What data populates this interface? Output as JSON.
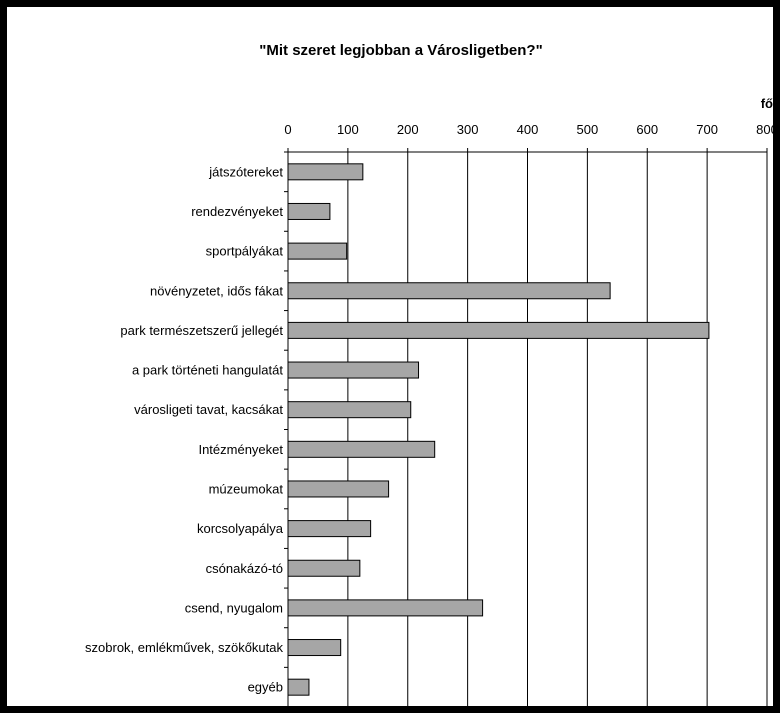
{
  "chart_data": {
    "type": "bar",
    "orientation": "horizontal",
    "title": "\"Mit szeret legjobban a Városligetben?\"",
    "unit_label": "fő",
    "xlim": [
      0,
      800
    ],
    "xticks": [
      0,
      100,
      200,
      300,
      400,
      500,
      600,
      700,
      800
    ],
    "grid": "vertical",
    "categories": [
      "játszótereket",
      "rendezvényeket",
      "sportpályákat",
      "növényzetet, idős fákat",
      "park természetszerű jellegét",
      "a park történeti hangulatát",
      "városligeti tavat, kacsákat",
      "Intézményeket",
      "múzeumokat",
      "korcsolyapálya",
      "csónakázó-tó",
      "csend, nyugalom",
      "szobrok, emlékművek, szökőkutak",
      "egyéb"
    ],
    "values": [
      125,
      70,
      98,
      538,
      703,
      218,
      205,
      245,
      168,
      138,
      120,
      325,
      88,
      35
    ],
    "bar_color": "#a6a6a6"
  }
}
